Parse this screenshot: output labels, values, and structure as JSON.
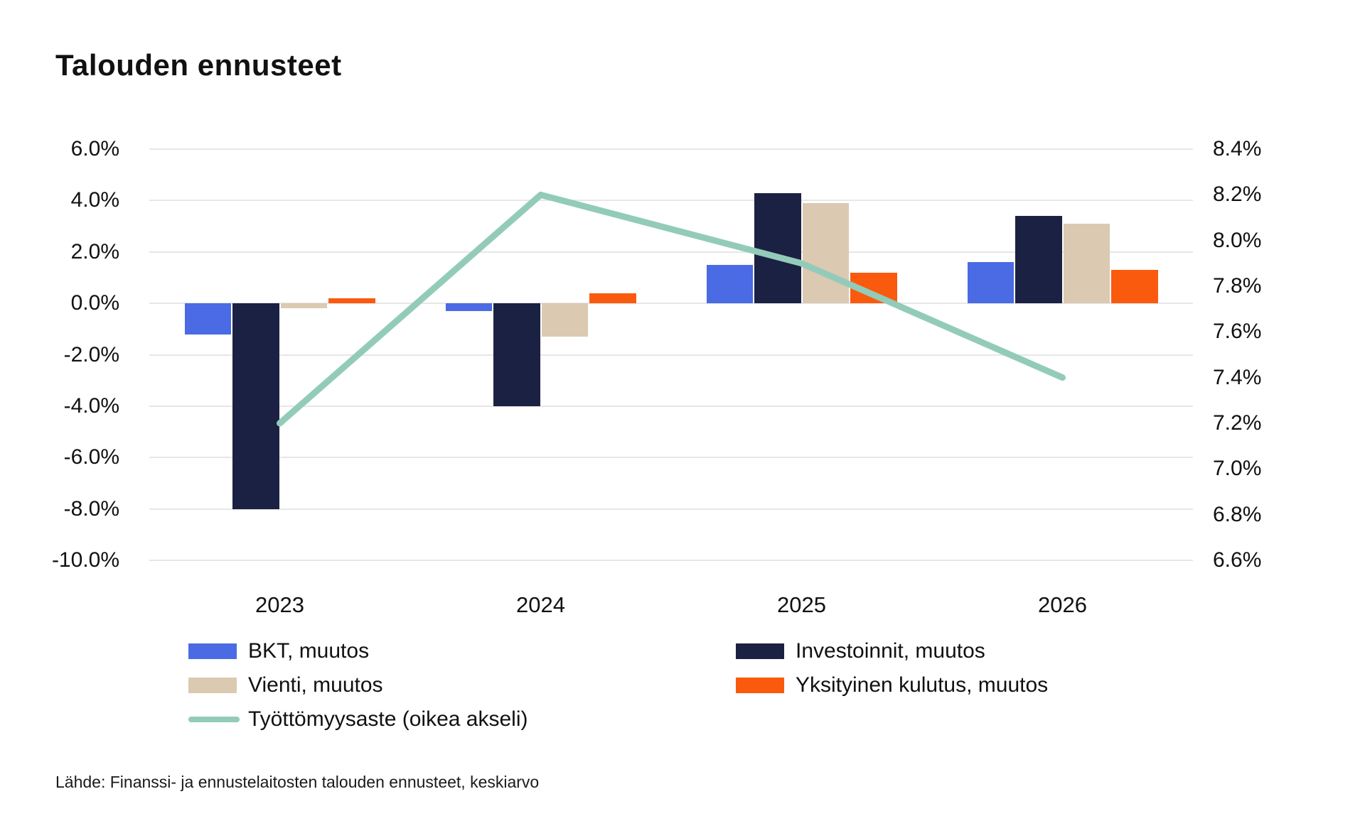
{
  "title": "Talouden ennusteet",
  "source": "Lähde: Finanssi- ja ennustelaitosten talouden ennusteet, keskiarvo",
  "colors": {
    "bkt": "#4a6be4",
    "investoinnit": "#1b2142",
    "vienti": "#dbc9b2",
    "yksityinen": "#fa5a0e",
    "tyottomyysaste": "#93cbb9",
    "gridline": "#e7e7e7",
    "text": "#111111"
  },
  "chart_data": {
    "type": "bar+line",
    "title": "Talouden ennusteet",
    "categories": [
      "2023",
      "2024",
      "2025",
      "2026"
    ],
    "series": [
      {
        "name": "BKT, muutos",
        "type": "bar",
        "axis": "left",
        "color_key": "bkt",
        "values": [
          -1.2,
          -0.3,
          1.5,
          1.6
        ]
      },
      {
        "name": "Investoinnit, muutos",
        "type": "bar",
        "axis": "left",
        "color_key": "investoinnit",
        "values": [
          -8.0,
          -4.0,
          4.3,
          3.4
        ]
      },
      {
        "name": "Vienti, muutos",
        "type": "bar",
        "axis": "left",
        "color_key": "vienti",
        "values": [
          -0.2,
          -1.3,
          3.9,
          3.1
        ]
      },
      {
        "name": "Yksityinen kulutus, muutos",
        "type": "bar",
        "axis": "left",
        "color_key": "yksityinen",
        "values": [
          0.2,
          0.4,
          1.2,
          1.3
        ]
      },
      {
        "name": "Työttömyysaste (oikea akseli)",
        "type": "line",
        "axis": "right",
        "color_key": "tyottomyysaste",
        "values": [
          7.2,
          8.2,
          7.9,
          7.4
        ]
      }
    ],
    "left_axis": {
      "min": -10.0,
      "max": 6.0,
      "step": 2.0,
      "ticks": [
        "6.0%",
        "4.0%",
        "2.0%",
        "0.0%",
        "-2.0%",
        "-4.0%",
        "-6.0%",
        "-8.0%",
        "-10.0%"
      ]
    },
    "right_axis": {
      "min": 6.6,
      "max": 8.4,
      "step": 0.2,
      "ticks": [
        "8.4%",
        "8.2%",
        "8.0%",
        "7.8%",
        "7.6%",
        "7.4%",
        "7.2%",
        "7.0%",
        "6.8%",
        "6.6%"
      ]
    },
    "grid": true,
    "legend": {
      "left_column": [
        "BKT, muutos",
        "Vienti, muutos",
        "Työttömyysaste (oikea akseli)"
      ],
      "right_column": [
        "Investoinnit, muutos",
        "Yksityinen kulutus, muutos"
      ]
    }
  }
}
